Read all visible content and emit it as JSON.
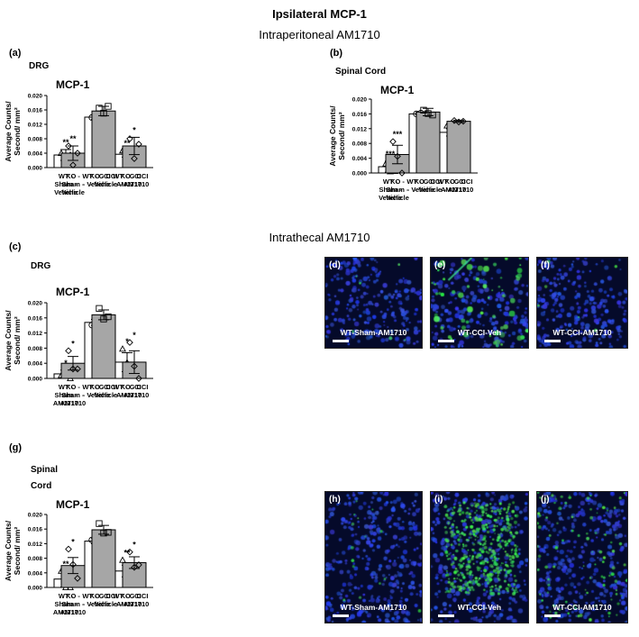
{
  "figure_title": "Ipsilateral MCP-1",
  "section_ip": "Intraperitoneal AM1710",
  "section_it": "Intrathecal AM1710",
  "panels": {
    "a": "(a)",
    "b": "(b)",
    "c": "(c)",
    "d": "(d)",
    "e": "(e)",
    "f": "(f)",
    "g": "(g)",
    "h": "(h)",
    "i": "(i)",
    "j": "(j)"
  },
  "regions": {
    "a": "DRG",
    "b": "Spinal Cord",
    "c": "DRG",
    "g_line1": "Spinal",
    "g_line2": "Cord"
  },
  "micrographs": [
    {
      "id": "d",
      "label": "WT-Sham-AM1710",
      "style": "drg_sham"
    },
    {
      "id": "e",
      "label": "WT-CCI-Veh",
      "style": "drg_cci"
    },
    {
      "id": "f",
      "label": "WT-CCI-AM1710",
      "style": "drg_am"
    },
    {
      "id": "h",
      "label": "WT-Sham-AM1710",
      "style": "sc_sham"
    },
    {
      "id": "i",
      "label": "WT-CCI-Veh",
      "style": "sc_cci"
    },
    {
      "id": "j",
      "label": "WT-CCI-AM1710",
      "style": "sc_am"
    }
  ],
  "colors": {
    "white_bar": "#ffffff",
    "grey_bar": "#a6a6a6",
    "stroke": "#000000",
    "micro_bg": "#06103a",
    "nuclei": "#1f36c8",
    "mcp1_signal": "#27d13a"
  },
  "chart_data": [
    {
      "panel": "a",
      "type": "bar",
      "title": "MCP-1",
      "ylabel": "Average Counts/ Second/ mm²",
      "ylim": [
        0,
        0.02
      ],
      "yticks": [
        "0.000",
        "0.004",
        "0.008",
        "0.012",
        "0.016",
        "0.020"
      ],
      "categories": [
        "WT - Sham - Vehicle",
        "KO - Sham - Vehicle",
        "WT - CCI - Vehicle",
        "KO - CCI - Vehicle",
        "WT - CCI - AM1710",
        "KO - CCI - AM1710"
      ],
      "values": [
        0.0035,
        0.004,
        0.014,
        0.0157,
        0.0037,
        0.006
      ],
      "errors": [
        0.0015,
        0.002,
        0.0006,
        0.0013,
        0.0008,
        0.0024
      ],
      "fills": [
        "white",
        "grey",
        "white",
        "grey",
        "white",
        "grey"
      ],
      "markers": [
        "triangle",
        "diamond",
        "circle",
        "square",
        "triangle",
        "diamond"
      ],
      "points": [
        [
          0.004,
          0.0018,
          0.0035
        ],
        [
          0.006,
          0.0007,
          0.004
        ],
        [
          0.0139,
          0.0143,
          0.0141
        ],
        [
          0.0165,
          0.0151,
          0.017
        ],
        [
          0.0047,
          0.0025,
          0.0036
        ],
        [
          0.008,
          0.0025,
          0.0065
        ]
      ],
      "significance": [
        "**",
        "**",
        "",
        "",
        "**",
        "*"
      ]
    },
    {
      "panel": "b",
      "type": "bar",
      "title": "MCP-1",
      "ylabel": "Average Counts/ Second/ mm²",
      "ylim": [
        0,
        0.02
      ],
      "yticks": [
        "0.000",
        "0.004",
        "0.008",
        "0.012",
        "0.016",
        "0.020"
      ],
      "categories": [
        "WT - Sham - Vehicle",
        "KO - Sham - Vehicle",
        "WT - CCI - Vehicle",
        "KO - CCI - Vehicle",
        "WT - CCI - AM1710",
        "KO - CCI - AM1710"
      ],
      "values": [
        0.0017,
        0.005,
        0.016,
        0.0165,
        0.011,
        0.014
      ],
      "errors": [
        0.0015,
        0.0025,
        0.0003,
        0.001,
        0.001,
        0.0003
      ],
      "fills": [
        "white",
        "grey",
        "white",
        "grey",
        "white",
        "grey"
      ],
      "markers": [
        "triangle",
        "diamond",
        "circle",
        "square",
        "triangle",
        "diamond"
      ],
      "points": [
        [
          0.0025,
          0.0004,
          0.0005
        ],
        [
          0.0085,
          0.0045,
          0.0
        ],
        [
          0.016,
          0.0162,
          0.0159
        ],
        [
          0.017,
          0.0161,
          0.0157
        ],
        [
          0.0128,
          0.0107,
          0.0098
        ],
        [
          0.0142,
          0.0138,
          0.014
        ]
      ],
      "significance": [
        "***",
        "***",
        "",
        "",
        "",
        ""
      ]
    },
    {
      "panel": "c",
      "type": "bar",
      "title": "MCP-1",
      "ylabel": "Average Counts/ Second/ mm²",
      "ylim": [
        0,
        0.02
      ],
      "yticks": [
        "0.000",
        "0.004",
        "0.008",
        "0.012",
        "0.016",
        "0.020"
      ],
      "categories": [
        "WT - Sham - AM1710",
        "KO - Sham - AM1710",
        "WT - CCI - Vehicle",
        "KO - CCI - Vehicle",
        "WT - CCI - AM1710",
        "KO - CCI - AM1710"
      ],
      "values": [
        0.0012,
        0.004,
        0.0148,
        0.0168,
        0.0043,
        0.0043
      ],
      "errors": [
        0.001,
        0.0018,
        0.0008,
        0.0013,
        0.0025,
        0.003
      ],
      "fills": [
        "white",
        "grey",
        "white",
        "grey",
        "white",
        "grey"
      ],
      "markers": [
        "triangle",
        "diamond",
        "circle",
        "square",
        "triangle",
        "diamond"
      ],
      "points": [
        [
          0.0008,
          0.0017,
          0.0
        ],
        [
          0.0073,
          0.0025,
          0.0025
        ],
        [
          0.0141,
          0.0157,
          0.0148
        ],
        [
          0.0185,
          0.0157,
          0.0163
        ],
        [
          0.0078,
          0.0042,
          0.0009
        ],
        [
          0.0095,
          0.0032,
          0.0
        ]
      ],
      "significance": [
        "*",
        "*",
        "",
        "",
        "*",
        "*"
      ]
    },
    {
      "panel": "g",
      "type": "bar",
      "title": "MCP-1",
      "ylabel": "Average Counts/ Second/ mm²",
      "ylim": [
        0,
        0.02
      ],
      "yticks": [
        "0.000",
        "0.004",
        "0.008",
        "0.012",
        "0.016",
        "0.020"
      ],
      "categories": [
        "WT - Sham - AM1710",
        "KO - Sham - AM1710",
        "WT - CCI - Vehicle",
        "KO - CCI - Vehicle",
        "WT - CCI - AM1710",
        "KO - CCI - AM1710"
      ],
      "values": [
        0.0023,
        0.006,
        0.0127,
        0.0158,
        0.0045,
        0.0068
      ],
      "errors": [
        0.0022,
        0.0022,
        0.0007,
        0.0012,
        0.0016,
        0.0016
      ],
      "fills": [
        "white",
        "grey",
        "white",
        "grey",
        "white",
        "grey"
      ],
      "markers": [
        "triangle",
        "diamond",
        "circle",
        "square",
        "triangle",
        "diamond"
      ],
      "points": [
        [
          0.0045,
          0.0,
          0.0
        ],
        [
          0.0105,
          0.0063,
          0.0025
        ],
        [
          0.013,
          0.0125,
          0.0121
        ],
        [
          0.0175,
          0.0149,
          0.0151
        ],
        [
          0.0075,
          0.0033,
          0.0032
        ],
        [
          0.0097,
          0.0055,
          0.0062
        ]
      ],
      "significance": [
        "**",
        "*",
        "",
        "",
        "**",
        "*"
      ]
    }
  ]
}
